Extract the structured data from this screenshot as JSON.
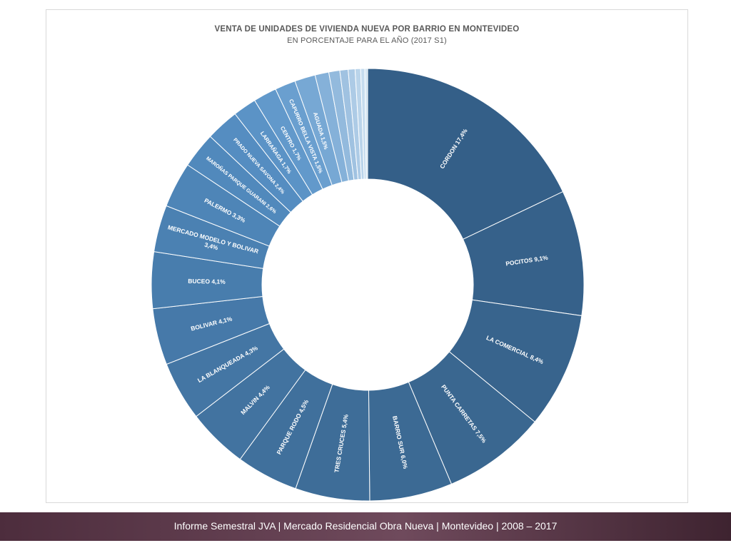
{
  "chart_data": {
    "type": "pie",
    "title": "VENTA DE UNIDADES DE VIVIENDA NUEVA POR BARRIO EN MONTEVIDEO",
    "subtitle": "EN PORCENTAJE PARA EL AÑO (2017 S1)",
    "slices": [
      {
        "label": "CORDON 17,4%",
        "value": 17.4,
        "color": "#345f88"
      },
      {
        "label": "POCITOS 9,1%",
        "value": 9.1,
        "color": "#36618a"
      },
      {
        "label": "LA COMERCIAL 8,4%",
        "value": 8.4,
        "color": "#38648d"
      },
      {
        "label": "PUNTA CARRETAS 7,5%",
        "value": 7.5,
        "color": "#3a6790"
      },
      {
        "label": "BARRIO SUR 6,0%",
        "value": 6.0,
        "color": "#3c6a94"
      },
      {
        "label": "TRES CRUCES 5,4%",
        "value": 5.4,
        "color": "#3e6d98"
      },
      {
        "label": "PARQUE RODO 4,5%",
        "value": 4.5,
        "color": "#40709c"
      },
      {
        "label": "MALVIN 4,4%",
        "value": 4.4,
        "color": "#4273a0"
      },
      {
        "label": "LA BLANQUEADA 4,3%",
        "value": 4.3,
        "color": "#4476a4"
      },
      {
        "label": "BOLIVAR 4,1%",
        "value": 4.1,
        "color": "#4679a9"
      },
      {
        "label": "BUCEO 4,1%",
        "value": 4.1,
        "color": "#487dad"
      },
      {
        "label": "MERCADO MODELO Y BOLIVAR\n3,4%",
        "value": 3.4,
        "color": "#4b81b2"
      },
      {
        "label": "PALERMO 3,3%",
        "value": 3.3,
        "color": "#4e85b7"
      },
      {
        "label": "MAROÑAS PARQUE GUARANI 2,6%",
        "value": 2.6,
        "color": "#5189bc"
      },
      {
        "label": "PRADO NUEVA SAVONA 2,4%",
        "value": 2.4,
        "color": "#558dc1"
      },
      {
        "label": "LARRAÑAGA 1,7%",
        "value": 1.7,
        "color": "#5b93c6"
      },
      {
        "label": "CENTRO 1,7%",
        "value": 1.7,
        "color": "#6299cb"
      },
      {
        "label": "CAPURRO BELLA VISTA 1,5%",
        "value": 1.5,
        "color": "#6a9fcf"
      },
      {
        "label": "AGUADA 1,5%",
        "value": 1.5,
        "color": "#77a8d4"
      },
      {
        "label": "",
        "value": 1.0,
        "color": "#85b1d9"
      },
      {
        "label": "",
        "value": 0.8,
        "color": "#93badd"
      },
      {
        "label": "",
        "value": 0.6,
        "color": "#a0c2e1"
      },
      {
        "label": "",
        "value": 0.5,
        "color": "#adcbe6"
      },
      {
        "label": "",
        "value": 0.4,
        "color": "#bad4ea"
      },
      {
        "label": "",
        "value": 0.3,
        "color": "#c6dcee"
      },
      {
        "label": "",
        "value": 0.2,
        "color": "#d2e4f2"
      }
    ]
  },
  "footer": {
    "text": "Informe Semestral JVA | Mercado Residencial Obra Nueva | Montevideo | 2008 – 2017"
  }
}
